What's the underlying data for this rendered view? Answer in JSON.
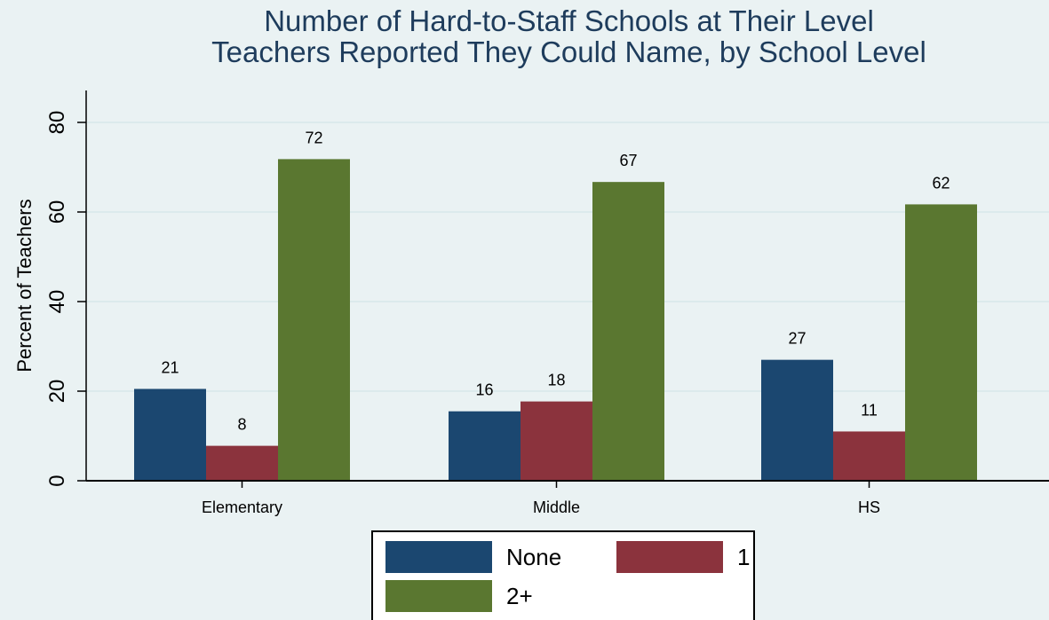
{
  "chart_data": {
    "type": "bar",
    "title": "Number of Hard-to-Staff Schools at Their Level",
    "subtitle": "Teachers Reported They Could Name, by School Level",
    "xlabel": "",
    "ylabel": "Percent of Teachers",
    "ylim": [
      0,
      85
    ],
    "yticks": [
      0,
      20,
      40,
      60,
      80
    ],
    "grid": true,
    "legend_placement": "bottom",
    "categories": [
      "Elementary",
      "Middle",
      "HS"
    ],
    "series": [
      {
        "name": "None",
        "color": "#1b4770",
        "values": [
          21,
          16,
          27
        ],
        "exact": [
          20.5,
          15.5,
          27
        ]
      },
      {
        "name": "1",
        "color": "#8b333d",
        "values": [
          8,
          18,
          11
        ],
        "exact": [
          7.8,
          17.7,
          11
        ]
      },
      {
        "name": "2+",
        "color": "#5a7730",
        "values": [
          72,
          67,
          62
        ],
        "exact": [
          71.8,
          66.7,
          61.7
        ]
      }
    ]
  },
  "colors": {
    "background": "#eaf2f3",
    "plot_background": "#eaf2f3",
    "gridline": "#d8e8ea",
    "title": "#1e3c5c"
  }
}
